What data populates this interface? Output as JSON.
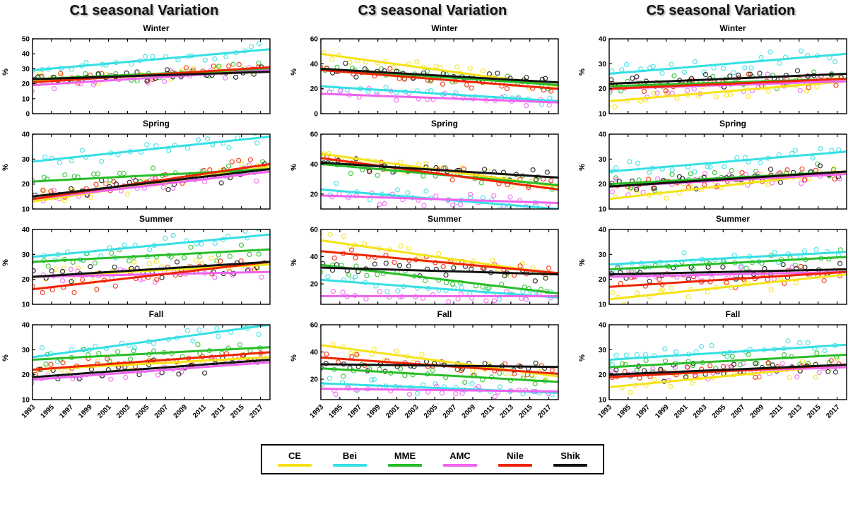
{
  "columns": [
    {
      "title": "C1 seasonal Variation"
    },
    {
      "title": "C3 seasonal Variation"
    },
    {
      "title": "C5 seasonal Variation"
    }
  ],
  "legend": {
    "items": [
      {
        "label": "CE",
        "color": "#f5e218"
      },
      {
        "label": "Bei",
        "color": "#35dfe4"
      },
      {
        "label": "MME",
        "color": "#27bd27"
      },
      {
        "label": "AMC",
        "color": "#ee63ee"
      },
      {
        "label": "Nile",
        "color": "#ee2400"
      },
      {
        "label": "Shik",
        "color": "#111111"
      }
    ]
  },
  "chart_data": [
    {
      "type": "scatter",
      "column": "C1",
      "title": "Winter",
      "ylabel": "%",
      "ylim": [
        0,
        50
      ],
      "yticks": [
        0,
        10,
        20,
        30,
        40,
        50
      ],
      "x_range": [
        1993,
        2018
      ],
      "xticks": [
        1993,
        1995,
        1997,
        1999,
        2001,
        2003,
        2005,
        2007,
        2009,
        2011,
        2013,
        2015,
        2017
      ],
      "show_xticks": false,
      "scatter_sd": 5,
      "series": [
        {
          "name": "CE",
          "trend": [
            22,
            29
          ]
        },
        {
          "name": "Bei",
          "trend": [
            29,
            43
          ]
        },
        {
          "name": "MME",
          "trend": [
            23,
            30
          ]
        },
        {
          "name": "AMC",
          "trend": [
            19,
            29
          ]
        },
        {
          "name": "Nile",
          "trend": [
            21,
            31
          ]
        },
        {
          "name": "Shik",
          "trend": [
            23,
            28
          ]
        }
      ]
    },
    {
      "type": "scatter",
      "column": "C1",
      "title": "Spring",
      "ylabel": "%",
      "ylim": [
        10,
        40
      ],
      "yticks": [
        10,
        20,
        30,
        40
      ],
      "x_range": [
        1993,
        2018
      ],
      "xticks": [
        1993,
        1995,
        1997,
        1999,
        2001,
        2003,
        2005,
        2007,
        2009,
        2011,
        2013,
        2015,
        2017
      ],
      "show_xticks": false,
      "scatter_sd": 4,
      "series": [
        {
          "name": "CE",
          "trend": [
            13,
            27
          ]
        },
        {
          "name": "Bei",
          "trend": [
            29,
            39
          ]
        },
        {
          "name": "MME",
          "trend": [
            21,
            26
          ]
        },
        {
          "name": "AMC",
          "trend": [
            14,
            25
          ]
        },
        {
          "name": "Nile",
          "trend": [
            14,
            28
          ]
        },
        {
          "name": "Shik",
          "trend": [
            15,
            26
          ]
        }
      ]
    },
    {
      "type": "scatter",
      "column": "C1",
      "title": "Summer",
      "ylabel": "%",
      "ylim": [
        10,
        40
      ],
      "yticks": [
        10,
        20,
        30,
        40
      ],
      "x_range": [
        1993,
        2018
      ],
      "xticks": [
        1993,
        1995,
        1997,
        1999,
        2001,
        2003,
        2005,
        2007,
        2009,
        2011,
        2013,
        2015,
        2017
      ],
      "show_xticks": false,
      "scatter_sd": 4,
      "series": [
        {
          "name": "CE",
          "trend": [
            21,
            26
          ]
        },
        {
          "name": "Bei",
          "trend": [
            29,
            38
          ]
        },
        {
          "name": "MME",
          "trend": [
            27,
            32
          ]
        },
        {
          "name": "AMC",
          "trend": [
            21,
            23
          ]
        },
        {
          "name": "Nile",
          "trend": [
            16,
            27
          ]
        },
        {
          "name": "Shik",
          "trend": [
            21,
            27
          ]
        }
      ]
    },
    {
      "type": "scatter",
      "column": "C1",
      "title": "Fall",
      "ylabel": "%",
      "ylim": [
        10,
        40
      ],
      "yticks": [
        10,
        20,
        30,
        40
      ],
      "x_range": [
        1993,
        2018
      ],
      "xticks": [
        1993,
        1995,
        1997,
        1999,
        2001,
        2003,
        2005,
        2007,
        2009,
        2011,
        2013,
        2015,
        2017
      ],
      "show_xticks": true,
      "scatter_sd": 4,
      "series": [
        {
          "name": "CE",
          "trend": [
            22,
            27
          ]
        },
        {
          "name": "Bei",
          "trend": [
            27,
            40
          ]
        },
        {
          "name": "MME",
          "trend": [
            26,
            31
          ]
        },
        {
          "name": "AMC",
          "trend": [
            18,
            25
          ]
        },
        {
          "name": "Nile",
          "trend": [
            22,
            29
          ]
        },
        {
          "name": "Shik",
          "trend": [
            19,
            26
          ]
        }
      ]
    },
    {
      "type": "scatter",
      "column": "C3",
      "title": "Winter",
      "ylabel": "%",
      "ylim": [
        0,
        60
      ],
      "yticks": [
        0,
        20,
        40,
        60
      ],
      "x_range": [
        1993,
        2018
      ],
      "xticks": [
        1993,
        1995,
        1997,
        1999,
        2001,
        2003,
        2005,
        2007,
        2009,
        2011,
        2013,
        2015,
        2017
      ],
      "show_xticks": false,
      "scatter_sd": 6,
      "series": [
        {
          "name": "CE",
          "trend": [
            48,
            22
          ]
        },
        {
          "name": "Bei",
          "trend": [
            22,
            10
          ]
        },
        {
          "name": "MME",
          "trend": [
            36,
            23
          ]
        },
        {
          "name": "AMC",
          "trend": [
            16,
            9
          ]
        },
        {
          "name": "Nile",
          "trend": [
            35,
            20
          ]
        },
        {
          "name": "Shik",
          "trend": [
            36,
            25
          ]
        }
      ]
    },
    {
      "type": "scatter",
      "column": "C3",
      "title": "Spring",
      "ylabel": "%",
      "ylim": [
        10,
        60
      ],
      "yticks": [
        20,
        40,
        60
      ],
      "x_range": [
        1993,
        2018
      ],
      "xticks": [
        1993,
        1995,
        1997,
        1999,
        2001,
        2003,
        2005,
        2007,
        2009,
        2011,
        2013,
        2015,
        2017
      ],
      "show_xticks": false,
      "scatter_sd": 6,
      "series": [
        {
          "name": "CE",
          "trend": [
            47,
            25
          ]
        },
        {
          "name": "Bei",
          "trend": [
            23,
            10
          ]
        },
        {
          "name": "MME",
          "trend": [
            40,
            26
          ]
        },
        {
          "name": "AMC",
          "trend": [
            19,
            14
          ]
        },
        {
          "name": "Nile",
          "trend": [
            44,
            23
          ]
        },
        {
          "name": "Shik",
          "trend": [
            41,
            31
          ]
        }
      ]
    },
    {
      "type": "scatter",
      "column": "C3",
      "title": "Summer",
      "ylabel": "%",
      "ylim": [
        5,
        60
      ],
      "yticks": [
        20,
        40,
        60
      ],
      "x_range": [
        1993,
        2018
      ],
      "xticks": [
        1993,
        1995,
        1997,
        1999,
        2001,
        2003,
        2005,
        2007,
        2009,
        2011,
        2013,
        2015,
        2017
      ],
      "show_xticks": false,
      "scatter_sd": 6,
      "series": [
        {
          "name": "CE",
          "trend": [
            52,
            27
          ]
        },
        {
          "name": "Bei",
          "trend": [
            23,
            10
          ]
        },
        {
          "name": "MME",
          "trend": [
            34,
            13
          ]
        },
        {
          "name": "AMC",
          "trend": [
            11,
            11
          ]
        },
        {
          "name": "Nile",
          "trend": [
            44,
            28
          ]
        },
        {
          "name": "Shik",
          "trend": [
            32,
            27
          ]
        }
      ]
    },
    {
      "type": "scatter",
      "column": "C3",
      "title": "Fall",
      "ylabel": "%",
      "ylim": [
        5,
        60
      ],
      "yticks": [
        20,
        40,
        60
      ],
      "x_range": [
        1993,
        2018
      ],
      "xticks": [
        1993,
        1995,
        1997,
        1999,
        2001,
        2003,
        2005,
        2007,
        2009,
        2011,
        2013,
        2015,
        2017
      ],
      "show_xticks": true,
      "scatter_sd": 6,
      "series": [
        {
          "name": "CE",
          "trend": [
            45,
            22
          ]
        },
        {
          "name": "Bei",
          "trend": [
            17,
            10
          ]
        },
        {
          "name": "MME",
          "trend": [
            28,
            18
          ]
        },
        {
          "name": "AMC",
          "trend": [
            13,
            11
          ]
        },
        {
          "name": "Nile",
          "trend": [
            36,
            24
          ]
        },
        {
          "name": "Shik",
          "trend": [
            31,
            29
          ]
        }
      ]
    },
    {
      "type": "scatter",
      "column": "C5",
      "title": "Winter",
      "ylabel": "%",
      "ylim": [
        10,
        40
      ],
      "yticks": [
        10,
        20,
        30,
        40
      ],
      "x_range": [
        1993,
        2018
      ],
      "xticks": [
        1993,
        1995,
        1997,
        1999,
        2001,
        2003,
        2005,
        2007,
        2009,
        2011,
        2013,
        2015,
        2017
      ],
      "show_xticks": false,
      "scatter_sd": 4,
      "series": [
        {
          "name": "CE",
          "trend": [
            15,
            23
          ]
        },
        {
          "name": "Bei",
          "trend": [
            26,
            34
          ]
        },
        {
          "name": "MME",
          "trend": [
            21,
            24
          ]
        },
        {
          "name": "AMC",
          "trend": [
            20,
            23
          ]
        },
        {
          "name": "Nile",
          "trend": [
            20,
            24
          ]
        },
        {
          "name": "Shik",
          "trend": [
            22,
            26
          ]
        }
      ]
    },
    {
      "type": "scatter",
      "column": "C5",
      "title": "Spring",
      "ylabel": "%",
      "ylim": [
        10,
        40
      ],
      "yticks": [
        10,
        20,
        30,
        40
      ],
      "x_range": [
        1993,
        2018
      ],
      "xticks": [
        1993,
        1995,
        1997,
        1999,
        2001,
        2003,
        2005,
        2007,
        2009,
        2011,
        2013,
        2015,
        2017
      ],
      "show_xticks": false,
      "scatter_sd": 4,
      "series": [
        {
          "name": "CE",
          "trend": [
            14,
            25
          ]
        },
        {
          "name": "Bei",
          "trend": [
            25,
            33
          ]
        },
        {
          "name": "MME",
          "trend": [
            20,
            25
          ]
        },
        {
          "name": "AMC",
          "trend": [
            19,
            24
          ]
        },
        {
          "name": "Nile",
          "trend": [
            19,
            25
          ]
        },
        {
          "name": "Shik",
          "trend": [
            19,
            25
          ]
        }
      ]
    },
    {
      "type": "scatter",
      "column": "C5",
      "title": "Summer",
      "ylabel": "%",
      "ylim": [
        10,
        40
      ],
      "yticks": [
        10,
        20,
        30,
        40
      ],
      "x_range": [
        1993,
        2018
      ],
      "xticks": [
        1993,
        1995,
        1997,
        1999,
        2001,
        2003,
        2005,
        2007,
        2009,
        2011,
        2013,
        2015,
        2017
      ],
      "show_xticks": false,
      "scatter_sd": 4,
      "series": [
        {
          "name": "CE",
          "trend": [
            12,
            22
          ]
        },
        {
          "name": "Bei",
          "trend": [
            26,
            31
          ]
        },
        {
          "name": "MME",
          "trend": [
            24,
            29
          ]
        },
        {
          "name": "AMC",
          "trend": [
            21,
            23
          ]
        },
        {
          "name": "Nile",
          "trend": [
            17,
            23
          ]
        },
        {
          "name": "Shik",
          "trend": [
            22,
            24
          ]
        }
      ]
    },
    {
      "type": "scatter",
      "column": "C5",
      "title": "Fall",
      "ylabel": "%",
      "ylim": [
        10,
        40
      ],
      "yticks": [
        10,
        20,
        30,
        40
      ],
      "x_range": [
        1993,
        2018
      ],
      "xticks": [
        1993,
        1995,
        1997,
        1999,
        2001,
        2003,
        2005,
        2007,
        2009,
        2011,
        2013,
        2015,
        2017
      ],
      "show_xticks": true,
      "scatter_sd": 4,
      "series": [
        {
          "name": "CE",
          "trend": [
            15,
            24
          ]
        },
        {
          "name": "Bei",
          "trend": [
            26,
            32
          ]
        },
        {
          "name": "MME",
          "trend": [
            23,
            28
          ]
        },
        {
          "name": "AMC",
          "trend": [
            20,
            23
          ]
        },
        {
          "name": "Nile",
          "trend": [
            19,
            24
          ]
        },
        {
          "name": "Shik",
          "trend": [
            20,
            24
          ]
        }
      ]
    }
  ]
}
